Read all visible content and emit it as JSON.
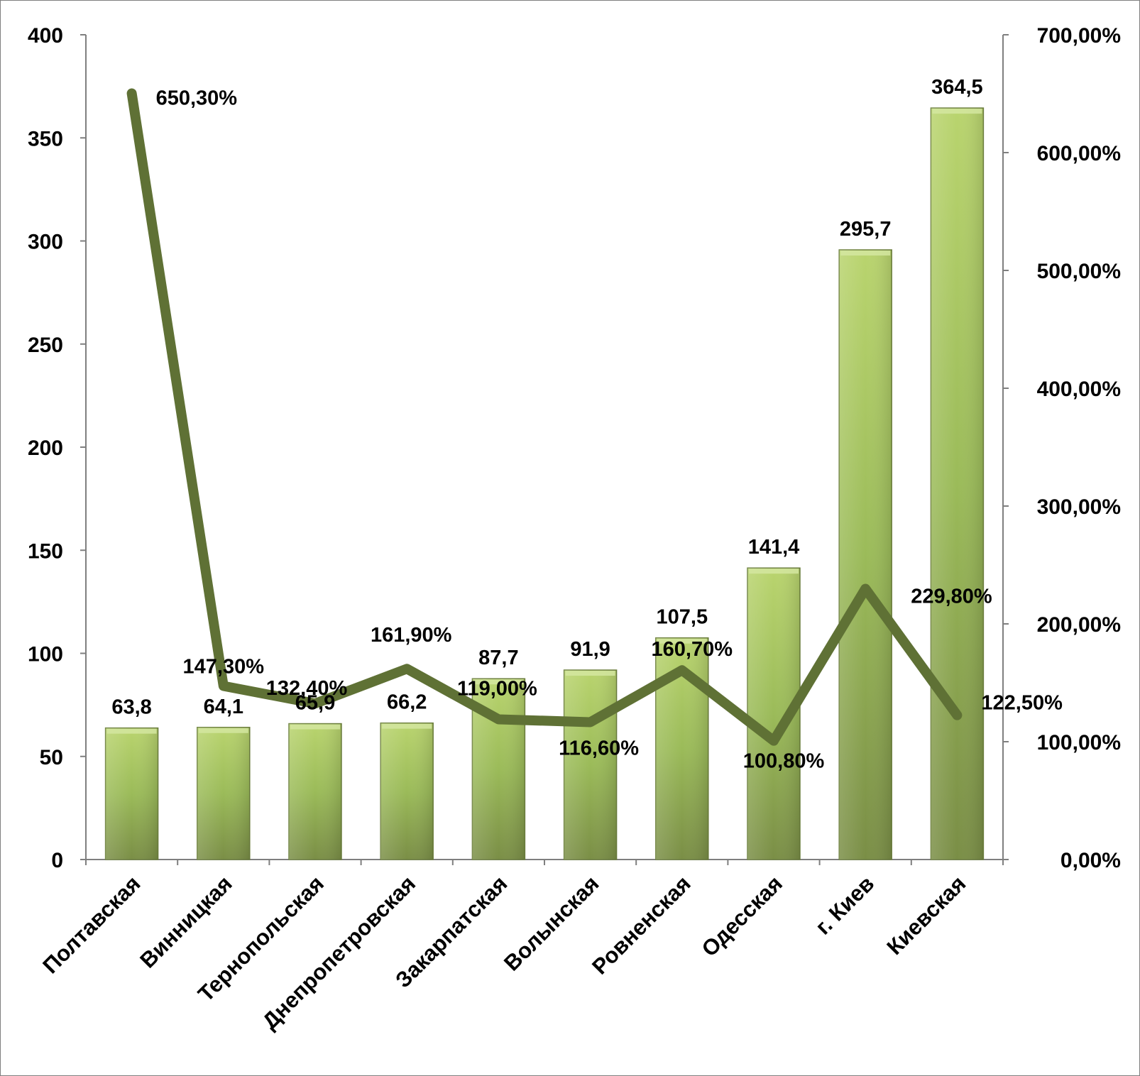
{
  "chart_data": {
    "type": "bar",
    "categories": [
      "Полтавская",
      "Винницкая",
      "Тернопольская",
      "Днепропетровская",
      "Закарпатская",
      "Волынская",
      "Ровненская",
      "Одесская",
      "г. Киев",
      "Киевская"
    ],
    "series": [
      {
        "type": "bar",
        "axis": "left",
        "values": [
          63.8,
          64.1,
          65.9,
          66.2,
          87.7,
          91.9,
          107.5,
          141.4,
          295.7,
          364.5
        ],
        "labels": [
          "63,8",
          "64,1",
          "65,9",
          "66,2",
          "87,7",
          "91,9",
          "107,5",
          "141,4",
          "295,7",
          "364,5"
        ],
        "color": "#9bbb59"
      },
      {
        "type": "line",
        "axis": "right",
        "values": [
          650.3,
          147.3,
          132.4,
          161.9,
          119.0,
          116.6,
          160.7,
          100.8,
          229.8,
          122.5
        ],
        "labels": [
          "650,30%",
          "147,30%",
          "132,40%",
          "161,90%",
          "119,00%",
          "116,60%",
          "160,70%",
          "100,80%",
          "229,80%",
          "122,50%"
        ],
        "color": "#5f7135"
      }
    ],
    "y_left": {
      "ylim": [
        0,
        400
      ],
      "ticks": [
        "0",
        "50",
        "100",
        "150",
        "200",
        "250",
        "300",
        "350",
        "400"
      ]
    },
    "y_right": {
      "ylim": [
        0,
        700
      ],
      "ticks": [
        "0,00%",
        "100,00%",
        "200,00%",
        "300,00%",
        "400,00%",
        "500,00%",
        "600,00%",
        "700,00%"
      ]
    },
    "title": "",
    "xlabel": "",
    "ylabel": "",
    "grid": false,
    "legend": "none"
  }
}
